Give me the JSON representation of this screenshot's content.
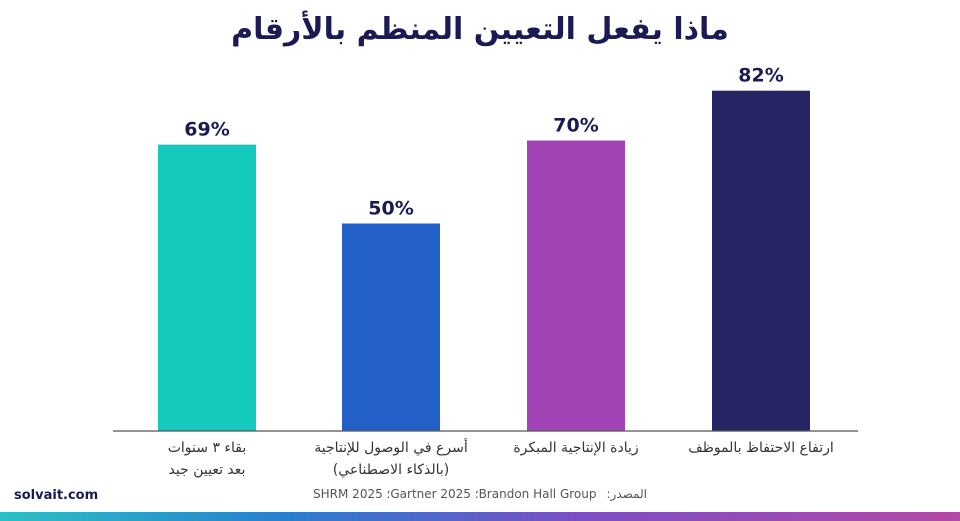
{
  "title": "ماذا يفعل التعيين المنظم بالأرقام",
  "chart_data": {
    "type": "bar",
    "categories": [
      [
        "بقاء ٣ سنوات",
        "بعد تعيين جيد"
      ],
      [
        "أسرع في الوصول للإنتاجية",
        "(بالذكاء الاصطناعي)"
      ],
      [
        "زيادة الإنتاجية المبكرة"
      ],
      [
        "ارتفاع الاحتفاظ بالموظف"
      ]
    ],
    "values": [
      69,
      50,
      70,
      82
    ],
    "value_labels": [
      "69%",
      "50%",
      "70%",
      "82%"
    ],
    "colors": [
      "#12c9bb",
      "#2361c9",
      "#a244b5",
      "#262463"
    ],
    "ylim": [
      0,
      100
    ],
    "title": "ماذا يفعل التعيين المنظم بالأرقام",
    "xlabel": "",
    "ylabel": "",
    "grid": false,
    "legend": "none"
  },
  "footer": {
    "brand": "solvait.com",
    "source_label": "المصدر:",
    "source_text": "Brandon Hall Group؛ Gartner 2025؛ SHRM 2025"
  }
}
